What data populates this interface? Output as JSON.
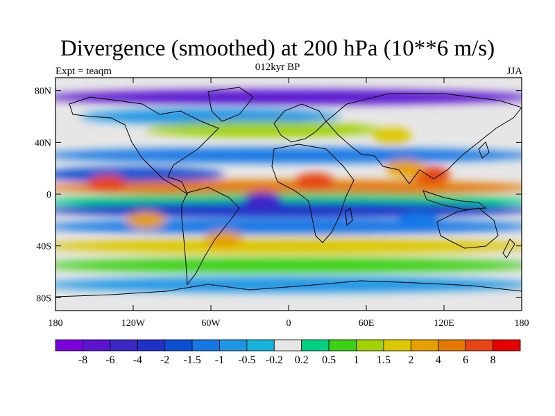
{
  "title": "Divergence (smoothed) at 200 hPa (10**6 m/s)",
  "subtitle_left": "Expt = teaqm",
  "subtitle_center": "012kyr BP",
  "subtitle_right": "JJA",
  "x_ticks": [
    {
      "lon": -180,
      "label": "180"
    },
    {
      "lon": -120,
      "label": "120W"
    },
    {
      "lon": -60,
      "label": "60W"
    },
    {
      "lon": 0,
      "label": "0"
    },
    {
      "lon": 60,
      "label": "60E"
    },
    {
      "lon": 120,
      "label": "120E"
    },
    {
      "lon": 180,
      "label": "180"
    }
  ],
  "y_ticks": [
    {
      "lat": 80,
      "label": "80N"
    },
    {
      "lat": 40,
      "label": "40N"
    },
    {
      "lat": 0,
      "label": "0"
    },
    {
      "lat": -40,
      "label": "40S"
    },
    {
      "lat": -80,
      "label": "80S"
    }
  ],
  "colorbar": {
    "colors": [
      "#7a00dc",
      "#5a14d2",
      "#3c28c8",
      "#1e32c8",
      "#0a50d2",
      "#1478e6",
      "#1e96e6",
      "#14b4dc",
      "#e6e6e6",
      "#00d282",
      "#3cd214",
      "#a0d200",
      "#dcc800",
      "#e6a000",
      "#e67800",
      "#e64614",
      "#e60000"
    ],
    "labels": [
      "-8",
      "-6",
      "-4",
      "-2",
      "-1.5",
      "-1",
      "-0.5",
      "-0.2",
      "0.2",
      "0.5",
      "1",
      "1.5",
      "2",
      "4",
      "6",
      "8"
    ]
  },
  "field_bands": [
    {
      "lat": 75,
      "lon_from": -180,
      "lon_to": 180,
      "level": 1
    },
    {
      "lat": 60,
      "lon_from": -150,
      "lon_to": 30,
      "level": 6
    },
    {
      "lat": 50,
      "lon_from": -100,
      "lon_to": 60,
      "level": 11
    },
    {
      "lat": 30,
      "lon_from": -180,
      "lon_to": 180,
      "level": 5
    },
    {
      "lat": 15,
      "lon_from": -180,
      "lon_to": -60,
      "level": 4
    },
    {
      "lat": 5,
      "lon_from": -180,
      "lon_to": 180,
      "level": 14
    },
    {
      "lat": -5,
      "lon_from": -180,
      "lon_to": 180,
      "level": 9
    },
    {
      "lat": -12,
      "lon_from": -180,
      "lon_to": 180,
      "level": 3
    },
    {
      "lat": -25,
      "lon_from": -180,
      "lon_to": 180,
      "level": 5
    },
    {
      "lat": -40,
      "lon_from": -180,
      "lon_to": 180,
      "level": 12
    },
    {
      "lat": -55,
      "lon_from": -180,
      "lon_to": 180,
      "level": 10
    },
    {
      "lat": -70,
      "lon_from": -180,
      "lon_to": 180,
      "level": 6
    }
  ],
  "field_blobs": [
    {
      "lat": 10,
      "lon": 20,
      "level": 15
    },
    {
      "lat": 15,
      "lon": 110,
      "level": 15
    },
    {
      "lat": 8,
      "lon": -140,
      "level": 15
    },
    {
      "lat": -20,
      "lon": -110,
      "level": 13
    },
    {
      "lat": 20,
      "lon": 90,
      "level": 13
    },
    {
      "lat": -35,
      "lon": -50,
      "level": 13
    },
    {
      "lat": 45,
      "lon": 80,
      "level": 12
    },
    {
      "lat": -5,
      "lon": -20,
      "level": 2
    },
    {
      "lat": -20,
      "lon": 100,
      "level": 5
    }
  ]
}
